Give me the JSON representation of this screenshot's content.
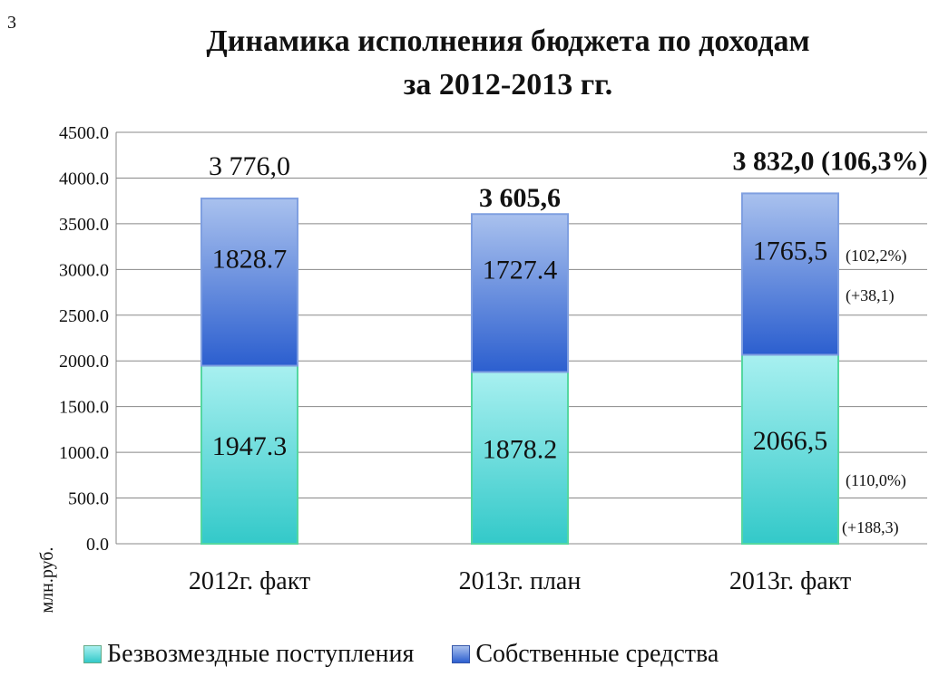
{
  "slide_number": "3",
  "title_line1": "Динамика исполнения бюджета по доходам",
  "title_line2": "за 2012-2013 гг.",
  "colors": {
    "gratuitous": "#3ecfd0",
    "own": "#3d6fd6",
    "grid": "#888888"
  },
  "chart_data": {
    "type": "bar",
    "stacked": true,
    "categories": [
      "2012г. факт",
      "2013г. план",
      "2013г. факт"
    ],
    "series": [
      {
        "name": "Безвозмездные поступления",
        "values": [
          1947.3,
          1878.2,
          2066.5
        ],
        "labels": [
          "1947.3",
          "1878.2",
          "2066,5"
        ]
      },
      {
        "name": "Собственные средства",
        "values": [
          1828.7,
          1727.4,
          1765.5
        ],
        "labels": [
          "1828.7",
          "1727.4",
          "1765,5"
        ]
      }
    ],
    "totals": [
      "3 776,0",
      "3 605,6",
      "3 832,0 (106,3%)"
    ],
    "annotations": [
      {
        "category": 2,
        "series": 1,
        "lines": [
          "(102,2%)",
          "(+38,1)"
        ]
      },
      {
        "category": 2,
        "series": 0,
        "lines": [
          "(110,0%)",
          "(+188,3)"
        ]
      }
    ],
    "ylabel": "млн.руб.",
    "ylim": [
      0,
      4500
    ],
    "yticks": [
      "0.0",
      "500.0",
      "1000.0",
      "1500.0",
      "2000.0",
      "2500.0",
      "3000.0",
      "3500.0",
      "4000.0",
      "4500.0"
    ],
    "grid": true,
    "legend": "bottom"
  }
}
